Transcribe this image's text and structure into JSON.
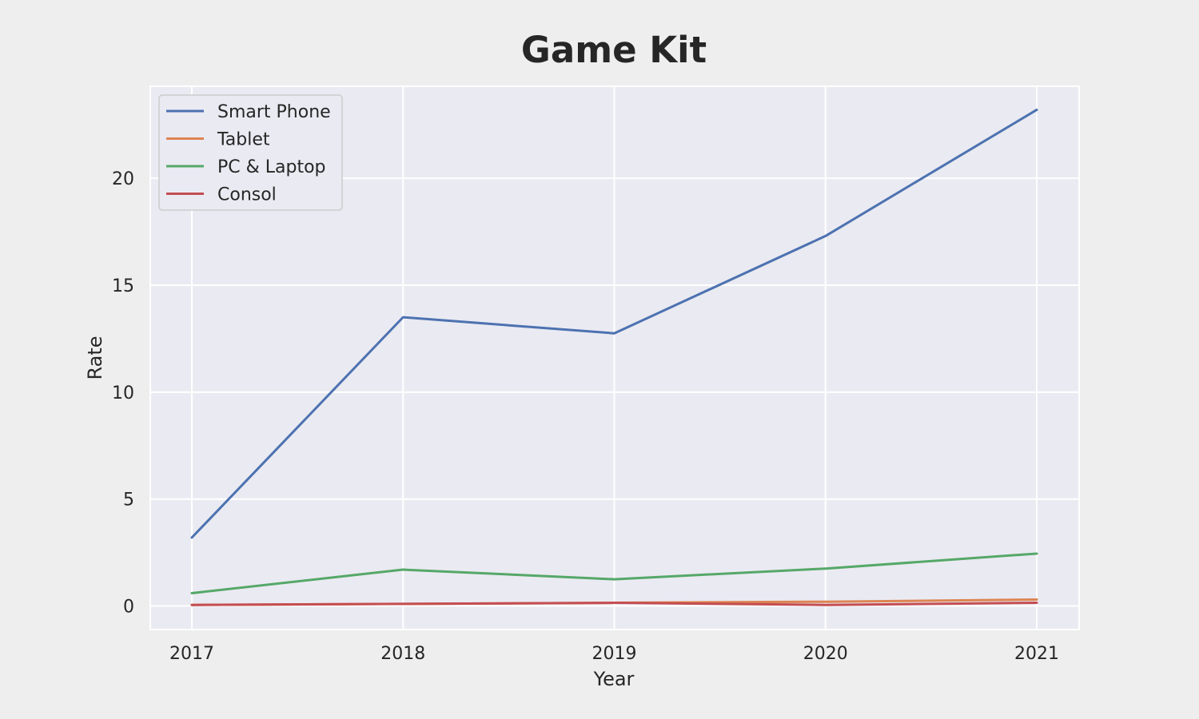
{
  "chart_data": {
    "type": "line",
    "title": "Game Kit",
    "xlabel": "Year",
    "ylabel": "Rate",
    "x": [
      "2017",
      "2018",
      "2019",
      "2020",
      "2021"
    ],
    "ylim": [
      -1.1,
      24.3
    ],
    "yticks": [
      0,
      5,
      10,
      15,
      20
    ],
    "grid": true,
    "legend_position": "top-left",
    "series": [
      {
        "name": "Smart Phone",
        "color": "#4c72b0",
        "values": [
          3.2,
          13.5,
          12.75,
          17.3,
          23.2
        ]
      },
      {
        "name": "Tablet",
        "color": "#dd8452",
        "values": [
          0.05,
          0.1,
          0.15,
          0.2,
          0.3
        ]
      },
      {
        "name": "PC & Laptop",
        "color": "#55a868",
        "values": [
          0.6,
          1.7,
          1.25,
          1.75,
          2.45
        ]
      },
      {
        "name": "Consol",
        "color": "#c44e52",
        "values": [
          0.05,
          0.1,
          0.15,
          0.05,
          0.15
        ]
      }
    ]
  }
}
